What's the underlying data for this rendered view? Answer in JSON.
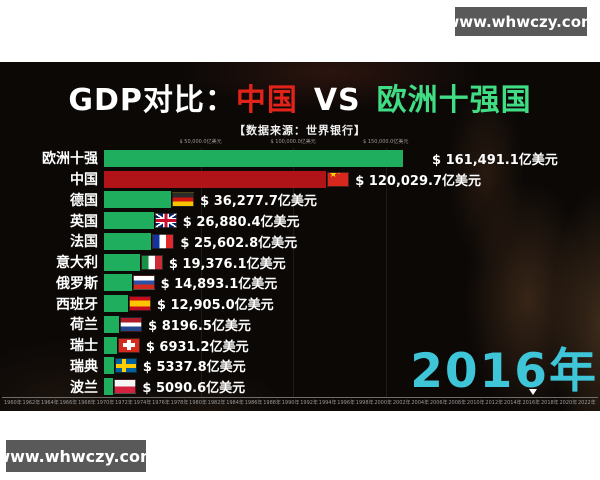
{
  "watermark": {
    "text": "www.whwczy.com"
  },
  "title": {
    "prefix": "GDP对比：",
    "china": "中国",
    "vs": "VS",
    "europe": "欧洲十强国"
  },
  "subtitle": "【数据来源：世界银行】",
  "big_year": "2016年",
  "colors": {
    "bar_green": "#1fae5e",
    "bar_red": "#b01318",
    "title_red": "#e2231a",
    "title_green": "#41dd85",
    "year_cyan": "#3ec5d8",
    "watermark_bg": "#595959",
    "video_bg": "#0b0806"
  },
  "chart_data": {
    "type": "bar",
    "orientation": "horizontal",
    "title": "GDP对比：中国 VS 欧洲十强国",
    "source_note": "【数据来源：世界银行】",
    "unit": "亿美元",
    "current_year": "2016年",
    "xlim": [
      0,
      165000
    ],
    "axis_ticks": [
      {
        "label": "$ 50,000.0亿美元",
        "value": 50000
      },
      {
        "label": "$ 100,000.0亿美元",
        "value": 100000
      },
      {
        "label": "$ 150,000.0亿美元",
        "value": 150000
      }
    ],
    "rows": [
      {
        "name": "欧洲十强",
        "value": 161491.1,
        "label": "$ 161,491.1亿美元",
        "flag": "none",
        "color": "green"
      },
      {
        "name": "中国",
        "value": 120029.7,
        "label": "$ 120,029.7亿美元",
        "flag": "cn",
        "color": "red"
      },
      {
        "name": "德国",
        "value": 36277.7,
        "label": "$ 36,277.7亿美元",
        "flag": "de",
        "color": "green"
      },
      {
        "name": "英国",
        "value": 26880.4,
        "label": "$ 26,880.4亿美元",
        "flag": "gb",
        "color": "green"
      },
      {
        "name": "法国",
        "value": 25602.8,
        "label": "$ 25,602.8亿美元",
        "flag": "fr",
        "color": "green"
      },
      {
        "name": "意大利",
        "value": 19376.1,
        "label": "$ 19,376.1亿美元",
        "flag": "it",
        "color": "green"
      },
      {
        "name": "俄罗斯",
        "value": 14893.1,
        "label": "$ 14,893.1亿美元",
        "flag": "ru",
        "color": "green"
      },
      {
        "name": "西班牙",
        "value": 12905.0,
        "label": "$ 12,905.0亿美元",
        "flag": "es",
        "color": "green"
      },
      {
        "name": "荷兰",
        "value": 8196.5,
        "label": "$ 8196.5亿美元",
        "flag": "nl",
        "color": "green"
      },
      {
        "name": "瑞士",
        "value": 6931.2,
        "label": "$ 6931.2亿美元",
        "flag": "ch",
        "color": "green"
      },
      {
        "name": "瑞典",
        "value": 5337.8,
        "label": "$ 5337.8亿美元",
        "flag": "se",
        "color": "green"
      },
      {
        "name": "波兰",
        "value": 5090.6,
        "label": "$ 5090.6亿美元",
        "flag": "pl",
        "color": "green"
      }
    ],
    "timeline_years": [
      "1960年",
      "1962年",
      "1964年",
      "1966年",
      "1968年",
      "1970年",
      "1972年",
      "1974年",
      "1976年",
      "1978年",
      "1980年",
      "1982年",
      "1984年",
      "1986年",
      "1988年",
      "1990年",
      "1992年",
      "1994年",
      "1996年",
      "1998年",
      "2000年",
      "2002年",
      "2004年",
      "2006年",
      "2008年",
      "2010年",
      "2012年",
      "2014年",
      "2016年",
      "2018年",
      "2020年",
      "2022年"
    ]
  }
}
